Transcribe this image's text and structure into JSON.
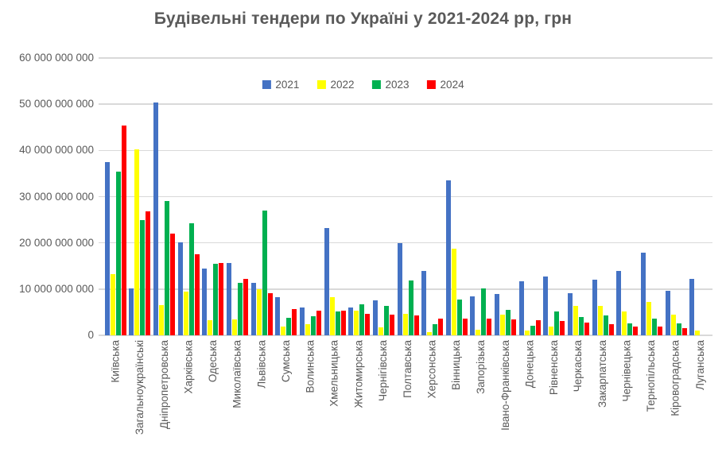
{
  "chart_data": {
    "type": "bar",
    "title": "Будівельні тендери по Україні у 2021-2024 рр, грн",
    "legend_position": "top-center",
    "grid": true,
    "categories": [
      "Київська",
      "Загальноукраїнські",
      "Дніпропетровська",
      "Харківська",
      "Одеська",
      "Миколаївська",
      "Львівська",
      "Сумська",
      "Волинська",
      "Хмельницька",
      "Житомирська",
      "Чернігівська",
      "Полтавська",
      "Херсонська",
      "Вінницька",
      "Запорізька",
      "Івано-Франківська",
      "Донецька",
      "Рівненська",
      "Черкаська",
      "Закарпатська",
      "Чернівецька",
      "Тернопільська",
      "Кіровоградська",
      "Луганська"
    ],
    "series": [
      {
        "name": "2021",
        "color": "#4472C4",
        "values_billions": [
          37.5,
          10.1,
          50.4,
          20.2,
          14.4,
          15.7,
          11.4,
          8.3,
          6.1,
          23.3,
          6.1,
          7.6,
          20.0,
          14.0,
          33.6,
          8.5,
          8.9,
          11.7,
          12.7,
          9.2,
          12.1,
          13.9,
          17.9,
          9.6,
          12.3
        ]
      },
      {
        "name": "2022",
        "color": "#FFFF00",
        "values_billions": [
          13.3,
          40.2,
          6.6,
          9.5,
          3.3,
          3.4,
          10.0,
          1.9,
          2.5,
          8.3,
          5.4,
          1.7,
          4.7,
          0.7,
          18.8,
          1.2,
          4.4,
          1.1,
          1.9,
          6.3,
          6.3,
          5.2,
          7.2,
          4.4,
          1.1
        ]
      },
      {
        "name": "2023",
        "color": "#00B050",
        "values_billions": [
          35.4,
          24.9,
          29.0,
          24.3,
          15.5,
          11.3,
          27.0,
          3.8,
          4.2,
          5.1,
          6.7,
          6.4,
          11.9,
          2.4,
          7.7,
          10.2,
          5.5,
          2.1,
          5.2,
          3.9,
          4.3,
          2.6,
          3.7,
          2.6,
          0
        ]
      },
      {
        "name": "2024",
        "color": "#FF0000",
        "values_billions": [
          45.4,
          26.9,
          22.0,
          17.5,
          15.6,
          12.2,
          9.1,
          5.6,
          5.3,
          5.3,
          4.7,
          4.5,
          4.3,
          3.7,
          3.7,
          3.7,
          3.4,
          3.2,
          3.1,
          2.7,
          2.4,
          1.9,
          1.9,
          1.5,
          0
        ]
      }
    ],
    "y_axis": {
      "min_billions": 0,
      "max_billions": 60,
      "tick_values_billions": [
        0,
        10,
        20,
        30,
        40,
        50,
        60
      ],
      "tick_labels": [
        "0",
        "10 000 000 000",
        "20 000 000 000",
        "30 000 000 000",
        "40 000 000 000",
        "50 000 000 000",
        "60 000 000 000"
      ]
    }
  },
  "styles": {
    "gridline_color": "#D9D9D9",
    "axis_text_color": "#595959",
    "title_color": "#595959",
    "background": "#FFFFFF"
  }
}
